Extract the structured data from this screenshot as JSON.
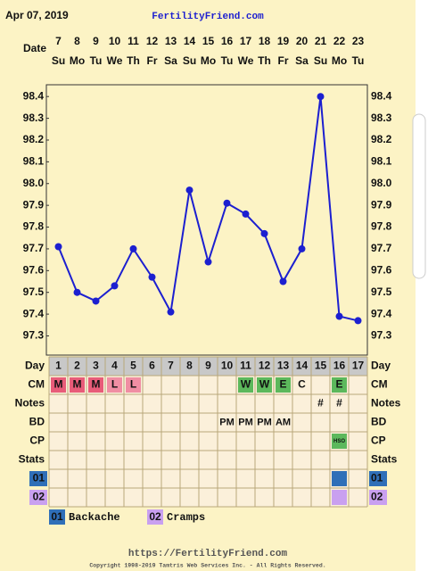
{
  "header": {
    "date": "Apr 07, 2019",
    "site": "FertilityFriend.com",
    "date_label": "Date"
  },
  "chart_data": {
    "type": "line",
    "x": [
      1,
      2,
      3,
      4,
      5,
      6,
      7,
      8,
      9,
      10,
      11,
      12,
      13,
      14,
      15,
      16,
      17
    ],
    "xlim": [
      0.5,
      17.5
    ],
    "dates": [
      7,
      8,
      9,
      10,
      11,
      12,
      13,
      14,
      15,
      16,
      17,
      18,
      19,
      20,
      21,
      22,
      23
    ],
    "weekdays": [
      "Su",
      "Mo",
      "Tu",
      "We",
      "Th",
      "Fr",
      "Sa",
      "Su",
      "Mo",
      "Tu",
      "We",
      "Th",
      "Fr",
      "Sa",
      "Su",
      "Mo",
      "Tu"
    ],
    "series": [
      {
        "color": "#1c1fd0",
        "values": [
          97.71,
          97.5,
          97.46,
          97.53,
          97.7,
          97.57,
          97.41,
          97.97,
          97.64,
          97.91,
          97.86,
          97.77,
          97.55,
          97.7,
          98.4,
          97.39,
          97.37
        ]
      }
    ],
    "ylim": [
      97.22,
      98.45
    ],
    "yticks": [
      97.3,
      97.4,
      97.5,
      97.6,
      97.7,
      97.8,
      97.9,
      {
        "value": 98,
        "label": "98.0"
      },
      98.1,
      98.2,
      98.3,
      98.4
    ]
  },
  "table": {
    "day_label": "Day",
    "rows": [
      {
        "label": "CM",
        "cells": [
          {
            "day": 1,
            "text": "M",
            "color": "#e85c79"
          },
          {
            "day": 2,
            "text": "M",
            "color": "#e85c79"
          },
          {
            "day": 3,
            "text": "M",
            "color": "#e85c79"
          },
          {
            "day": 4,
            "text": "L",
            "color": "#f08ea3"
          },
          {
            "day": 5,
            "text": "L",
            "color": "#f08ea3"
          },
          {
            "day": 11,
            "text": "W",
            "color": "#5cb85c"
          },
          {
            "day": 12,
            "text": "W",
            "color": "#5cb85c"
          },
          {
            "day": 13,
            "text": "E",
            "color": "#5cb85c"
          },
          {
            "day": 14,
            "text": "C"
          },
          {
            "day": 16,
            "text": "E",
            "color": "#5cb85c"
          }
        ]
      },
      {
        "label": "Notes",
        "cells": [
          {
            "day": 15,
            "text": "#"
          },
          {
            "day": 16,
            "text": "#"
          }
        ]
      },
      {
        "label": "BD",
        "cells": [
          {
            "day": 10,
            "text": "PM"
          },
          {
            "day": 11,
            "text": "PM"
          },
          {
            "day": 12,
            "text": "PM"
          },
          {
            "day": 13,
            "text": "AM"
          }
        ]
      },
      {
        "label": "CP",
        "cells": [
          {
            "day": 16,
            "text": "HSO",
            "color": "#5cb85c"
          }
        ]
      },
      {
        "label": "Stats",
        "cells": []
      },
      {
        "label": "01",
        "color": "#2f6fb8",
        "cells": [
          {
            "day": 16,
            "color": "#2f6fb8"
          }
        ]
      },
      {
        "label": "02",
        "color": "#c9a0f0",
        "cells": [
          {
            "day": 16,
            "color": "#c9a0f0"
          }
        ]
      }
    ]
  },
  "legend": [
    {
      "code": "01",
      "label": "Backache",
      "color": "#2f6fb8"
    },
    {
      "code": "02",
      "label": "Cramps",
      "color": "#c9a0f0"
    }
  ],
  "footer": {
    "url": "https://FertilityFriend.com",
    "copyright": "Copyright 1998-2019 Tamtris Web Services Inc. - All Rights Reserved."
  }
}
